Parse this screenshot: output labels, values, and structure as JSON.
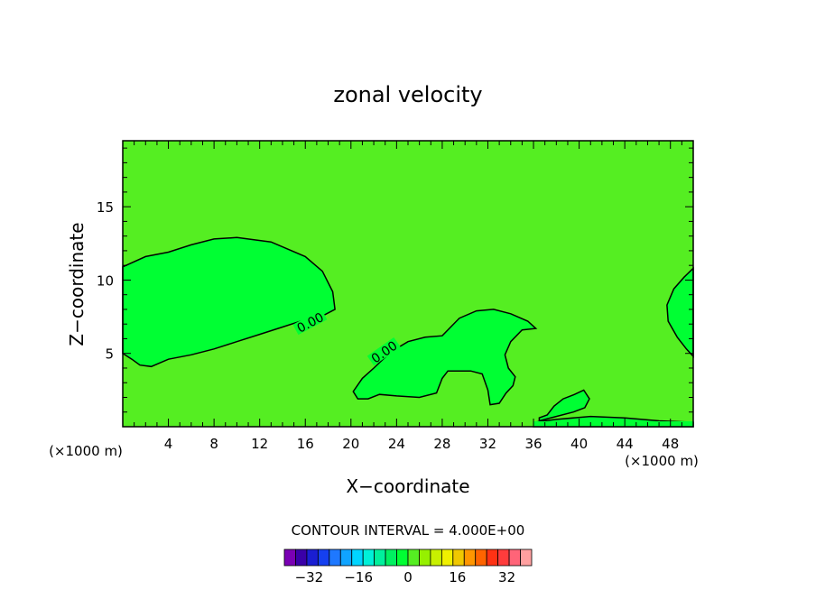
{
  "chart_data": {
    "type": "contour",
    "title": "zonal velocity",
    "xlabel": "X−coordinate",
    "ylabel": "Z−coordinate",
    "x_unit": "(×1000 m)",
    "x_unit_right": "(×1000 m)",
    "xlim": [
      0,
      50
    ],
    "ylim": [
      0,
      19.5
    ],
    "x_ticks": [
      4,
      8,
      12,
      16,
      20,
      24,
      28,
      32,
      36,
      40,
      44,
      48
    ],
    "y_ticks": [
      5,
      10,
      15
    ],
    "background_color": "#55ee22",
    "contour_labels": [
      {
        "text": "0.00",
        "x": 16.5,
        "y": 7.0,
        "angle": -28
      },
      {
        "text": "0.00",
        "x": 23.0,
        "y": 5.0,
        "angle": -35
      }
    ],
    "regions": [
      {
        "name": "zero-region-left",
        "color": "#00ff33",
        "points": [
          [
            0,
            10.9
          ],
          [
            2,
            11.6
          ],
          [
            4,
            11.9
          ],
          [
            6,
            12.4
          ],
          [
            8,
            12.8
          ],
          [
            10,
            12.9
          ],
          [
            13,
            12.6
          ],
          [
            16,
            11.6
          ],
          [
            17.5,
            10.6
          ],
          [
            18.4,
            9.2
          ],
          [
            18.6,
            8.0
          ],
          [
            17.6,
            7.6
          ],
          [
            16,
            7.3
          ],
          [
            14,
            6.8
          ],
          [
            12,
            6.3
          ],
          [
            10,
            5.8
          ],
          [
            8,
            5.3
          ],
          [
            6,
            4.9
          ],
          [
            4,
            4.6
          ],
          [
            2.5,
            4.1
          ],
          [
            1.5,
            4.2
          ],
          [
            0.8,
            4.6
          ],
          [
            0,
            5.0
          ]
        ]
      },
      {
        "name": "zero-region-middle",
        "color": "#00ff33",
        "points": [
          [
            20.2,
            2.4
          ],
          [
            21,
            3.3
          ],
          [
            22,
            4.0
          ],
          [
            23.5,
            5.1
          ],
          [
            25,
            5.8
          ],
          [
            26.5,
            6.1
          ],
          [
            28,
            6.2
          ],
          [
            29.5,
            7.4
          ],
          [
            31,
            7.9
          ],
          [
            32.5,
            8.0
          ],
          [
            34,
            7.7
          ],
          [
            35.5,
            7.2
          ],
          [
            36.2,
            6.7
          ],
          [
            35,
            6.6
          ],
          [
            34,
            5.8
          ],
          [
            33.5,
            4.9
          ],
          [
            33.8,
            4.0
          ],
          [
            34.4,
            3.4
          ],
          [
            34.2,
            2.8
          ],
          [
            33.6,
            2.3
          ],
          [
            33.0,
            1.6
          ],
          [
            32.2,
            1.5
          ],
          [
            32.0,
            2.5
          ],
          [
            31.5,
            3.6
          ],
          [
            30.5,
            3.8
          ],
          [
            28.5,
            3.8
          ],
          [
            28.0,
            3.3
          ],
          [
            27.5,
            2.3
          ],
          [
            26,
            2.0
          ],
          [
            24,
            2.1
          ],
          [
            22.5,
            2.2
          ],
          [
            21.5,
            1.9
          ],
          [
            20.6,
            1.9
          ]
        ]
      },
      {
        "name": "zero-region-right-upper",
        "color": "#00ff33",
        "points": [
          [
            50,
            10.8
          ],
          [
            49.2,
            10.2
          ],
          [
            48.3,
            9.4
          ],
          [
            47.7,
            8.3
          ],
          [
            47.8,
            7.2
          ],
          [
            48.6,
            6.1
          ],
          [
            49.4,
            5.3
          ],
          [
            50,
            4.8
          ]
        ]
      },
      {
        "name": "zero-region-right-lower",
        "color": "#00ff33",
        "points": [
          [
            36.5,
            0.4
          ],
          [
            38,
            0.7
          ],
          [
            39.5,
            1.0
          ],
          [
            40.5,
            1.3
          ],
          [
            40.9,
            1.9
          ],
          [
            40.4,
            2.5
          ],
          [
            39.6,
            2.2
          ],
          [
            38.6,
            1.9
          ],
          [
            37.8,
            1.4
          ],
          [
            37.2,
            0.8
          ],
          [
            36.5,
            0.6
          ]
        ]
      },
      {
        "name": "zero-region-bottom-strip",
        "color": "#00ff33",
        "points": [
          [
            36,
            0
          ],
          [
            50,
            0
          ],
          [
            50,
            0.3
          ],
          [
            47,
            0.4
          ],
          [
            44,
            0.6
          ],
          [
            41,
            0.7
          ],
          [
            38,
            0.5
          ],
          [
            36,
            0.3
          ]
        ]
      }
    ],
    "colorbar": {
      "label": "CONTOUR INTERVAL = 4.000E+00",
      "tick_labels": [
        "−32",
        "−16",
        "0",
        "16",
        "32"
      ],
      "tick_values": [
        -32,
        -16,
        0,
        16,
        32
      ],
      "min": -40,
      "max": 40,
      "colors": [
        "#7a00b4",
        "#3a00a8",
        "#1a1ed2",
        "#1540f0",
        "#1e78ff",
        "#10a4ff",
        "#00d4ff",
        "#00f0d8",
        "#00f09c",
        "#00f060",
        "#00ff33",
        "#55ee22",
        "#96f000",
        "#c8f000",
        "#f0f000",
        "#f0c800",
        "#ff9600",
        "#ff6400",
        "#ff3214",
        "#ff3c3c",
        "#ff6478",
        "#ffa0a0"
      ]
    }
  }
}
